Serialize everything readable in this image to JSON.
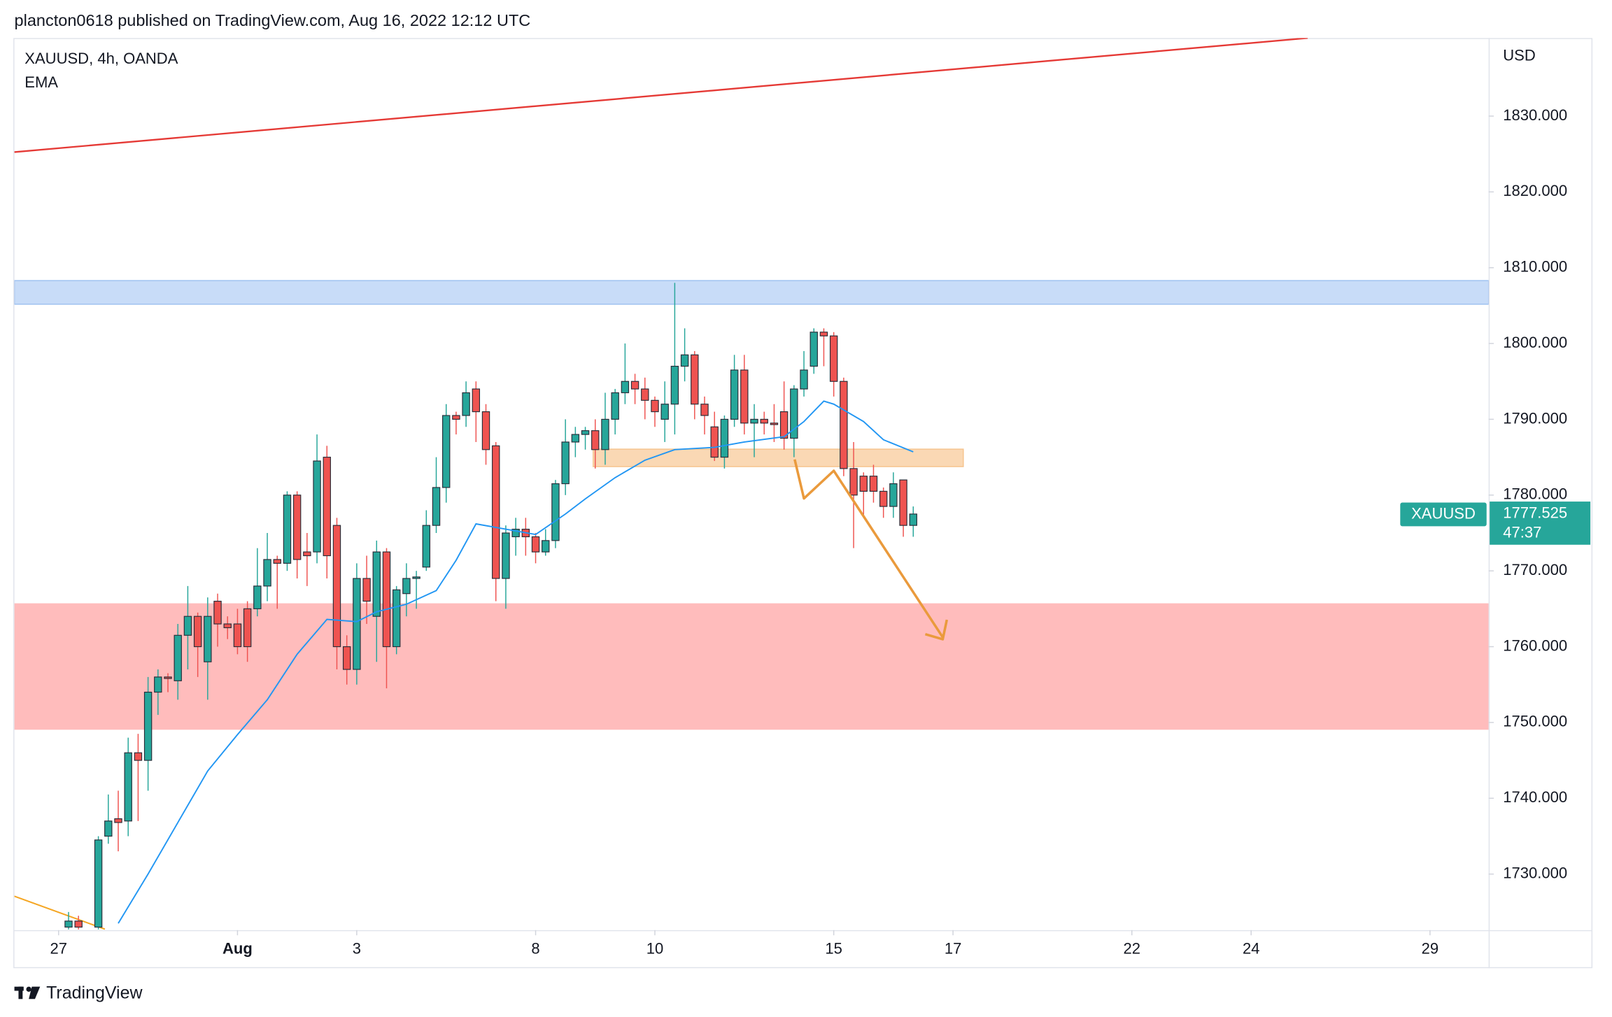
{
  "header": {
    "text": "plancton0618 published on TradingView.com, Aug 16, 2022 12:12 UTC"
  },
  "footer": {
    "brand": "TradingView"
  },
  "chart_data": {
    "type": "candlestick",
    "title": "XAUUSD, 4h, OANDA",
    "y_unit": "USD",
    "up_color": "#26a69a",
    "down_color": "#ef5350",
    "x": [
      1,
      2,
      4,
      5,
      6,
      7,
      8,
      9,
      10,
      11,
      12,
      13,
      14,
      15,
      16,
      17,
      18,
      19,
      20,
      21,
      22,
      23,
      24,
      25,
      26,
      27,
      28,
      29,
      30,
      31,
      32,
      33,
      34,
      35,
      36,
      37,
      38,
      39,
      40,
      41,
      42,
      43,
      44,
      45,
      46,
      47,
      48,
      49,
      50,
      51,
      52,
      53,
      54,
      55,
      56,
      57,
      58,
      59,
      60,
      61,
      62,
      63,
      64,
      65,
      66,
      67,
      68,
      69,
      70,
      71,
      72,
      73,
      74,
      75,
      76,
      77,
      78,
      79,
      80,
      81,
      82,
      83,
      84,
      85,
      86
    ],
    "open": [
      1723,
      1723.8,
      1723,
      1735,
      1737.3,
      1737,
      1746,
      1745,
      1754,
      1756,
      1755.5,
      1761.5,
      1764,
      1758,
      1766,
      1763,
      1763,
      1765,
      1765,
      1768,
      1771.5,
      1771,
      1780,
      1772.5,
      1772.5,
      1785,
      1776,
      1760,
      1757,
      1769,
      1764,
      1772.5,
      1760,
      1767,
      1769,
      1770.5,
      1776,
      1781,
      1790.5,
      1790.5,
      1794,
      1791,
      1786.5,
      1769,
      1774.5,
      1775.5,
      1774.5,
      1772.5,
      1774,
      1781.5,
      1787,
      1788,
      1788.5,
      1786,
      1790,
      1793.5,
      1795,
      1794,
      1792.5,
      1790,
      1792,
      1797,
      1798.5,
      1792,
      1789,
      1785,
      1790,
      1796.5,
      1789.5,
      1790,
      1789.5,
      1791,
      1787.5,
      1794,
      1797,
      1801.5,
      1801,
      1795,
      1783.5,
      1782.5,
      1782.5,
      1780.5,
      1778.5,
      1782,
      1776
    ],
    "high": [
      1725,
      1724.5,
      1735,
      1740.5,
      1741,
      1748,
      1748.5,
      1756,
      1757,
      1756.5,
      1763,
      1768,
      1764.5,
      1766.5,
      1767,
      1764,
      1765,
      1766,
      1773,
      1775,
      1772,
      1780.5,
      1780.5,
      1775,
      1788,
      1786.5,
      1777,
      1761.5,
      1771,
      1772,
      1774,
      1773,
      1768,
      1771,
      1770,
      1778,
      1785,
      1792,
      1791,
      1795,
      1795,
      1792,
      1787,
      1776,
      1777,
      1777,
      1775,
      1775.5,
      1782,
      1790,
      1789,
      1789,
      1790,
      1793.5,
      1794,
      1800,
      1796,
      1795.5,
      1793,
      1795,
      1808,
      1802,
      1799,
      1793,
      1791,
      1790.5,
      1798.5,
      1798.5,
      1792,
      1791,
      1792,
      1795,
      1794.5,
      1799,
      1802,
      1802,
      1801.5,
      1795.5,
      1787,
      1783,
      1784,
      1781,
      1783,
      1782,
      1778.5
    ],
    "low": [
      1722.7,
      1722.7,
      1722.7,
      1734,
      1733,
      1735,
      1737,
      1741,
      1751,
      1754,
      1753,
      1757,
      1756,
      1753,
      1760,
      1761,
      1759,
      1758,
      1764,
      1766,
      1765,
      1770,
      1769,
      1768,
      1771,
      1769,
      1757,
      1755,
      1755,
      1763,
      1758,
      1754.5,
      1759,
      1764,
      1765,
      1770,
      1775,
      1779,
      1788,
      1789,
      1787,
      1784,
      1766,
      1765,
      1772,
      1772,
      1771,
      1772,
      1773,
      1780,
      1785,
      1786,
      1783.5,
      1784,
      1788,
      1792,
      1792,
      1790,
      1789,
      1787,
      1788,
      1795,
      1790,
      1788,
      1784.5,
      1783.5,
      1789,
      1788,
      1785,
      1788,
      1787,
      1786,
      1785,
      1793,
      1796,
      1797,
      1793,
      1782.5,
      1773,
      1777,
      1779,
      1777,
      1777,
      1774.5,
      1774.5
    ],
    "close": [
      1723.8,
      1723,
      1734.5,
      1737,
      1736.8,
      1746,
      1745,
      1754,
      1756,
      1755.8,
      1761.5,
      1764,
      1760,
      1764,
      1763,
      1762.5,
      1760,
      1760,
      1768,
      1771.5,
      1771,
      1780,
      1771.5,
      1772,
      1784.5,
      1772,
      1760,
      1757,
      1769,
      1766,
      1772.5,
      1760,
      1767.5,
      1769,
      1769.2,
      1776,
      1781,
      1790.5,
      1790,
      1793.5,
      1791,
      1786,
      1769,
      1775,
      1775.5,
      1774.5,
      1772.5,
      1774,
      1781.5,
      1787,
      1788,
      1788.5,
      1786,
      1790,
      1793.5,
      1795,
      1794,
      1792.5,
      1791,
      1792,
      1797,
      1798.5,
      1792,
      1790.5,
      1785,
      1790,
      1796.5,
      1789.5,
      1790,
      1789.5,
      1789.3,
      1787.5,
      1794,
      1796.5,
      1801.5,
      1801,
      1795,
      1783.5,
      1780,
      1780.5,
      1780.5,
      1778.5,
      1781.5,
      1776,
      1777.5
    ],
    "ema": {
      "name": "EMA",
      "color": "#2196f3",
      "x": [
        6,
        9,
        12,
        15,
        18,
        21,
        24,
        27,
        30,
        32,
        35,
        38,
        40,
        42,
        45,
        48,
        51,
        53,
        56,
        59,
        62,
        66,
        69,
        73,
        75,
        77,
        78,
        81,
        83,
        86
      ],
      "values": [
        1723.5,
        1730,
        1736.8,
        1743.6,
        1748.4,
        1753,
        1759,
        1763.6,
        1763.3,
        1764.6,
        1765.6,
        1767.4,
        1771.4,
        1776.2,
        1775.5,
        1774.8,
        1777.5,
        1779.5,
        1782.3,
        1784.6,
        1786,
        1786.3,
        1787,
        1787.7,
        1789.7,
        1792.4,
        1792,
        1789.7,
        1787.3,
        1785.7
      ]
    },
    "last": {
      "symbol": "XAUUSD",
      "value": 1777.525,
      "price_label": "1777.525",
      "countdown": "47:37"
    },
    "xlim": [
      -4.45,
      143.9
    ],
    "xticks": [
      {
        "value": 0,
        "label": "27"
      },
      {
        "value": 18,
        "label": "Aug"
      },
      {
        "value": 30,
        "label": "3"
      },
      {
        "value": 48,
        "label": "8"
      },
      {
        "value": 60,
        "label": "10"
      },
      {
        "value": 78,
        "label": "15"
      },
      {
        "value": 90,
        "label": "17"
      },
      {
        "value": 108,
        "label": "22"
      },
      {
        "value": 120,
        "label": "24"
      },
      {
        "value": 138,
        "label": "29"
      }
    ],
    "ylim": [
      1722.6,
      1840.3
    ],
    "yticks": [
      {
        "value": 1730,
        "label": "1730.000"
      },
      {
        "value": 1740,
        "label": "1740.000"
      },
      {
        "value": 1750,
        "label": "1750.000"
      },
      {
        "value": 1760,
        "label": "1760.000"
      },
      {
        "value": 1770,
        "label": "1770.000"
      },
      {
        "value": 1780,
        "label": "1780.000"
      },
      {
        "value": 1790,
        "label": "1790.000"
      },
      {
        "value": 1800,
        "label": "1800.000"
      },
      {
        "value": 1810,
        "label": "1810.000"
      },
      {
        "value": 1820,
        "label": "1820.000"
      },
      {
        "value": 1830,
        "label": "1830.000"
      }
    ]
  }
}
